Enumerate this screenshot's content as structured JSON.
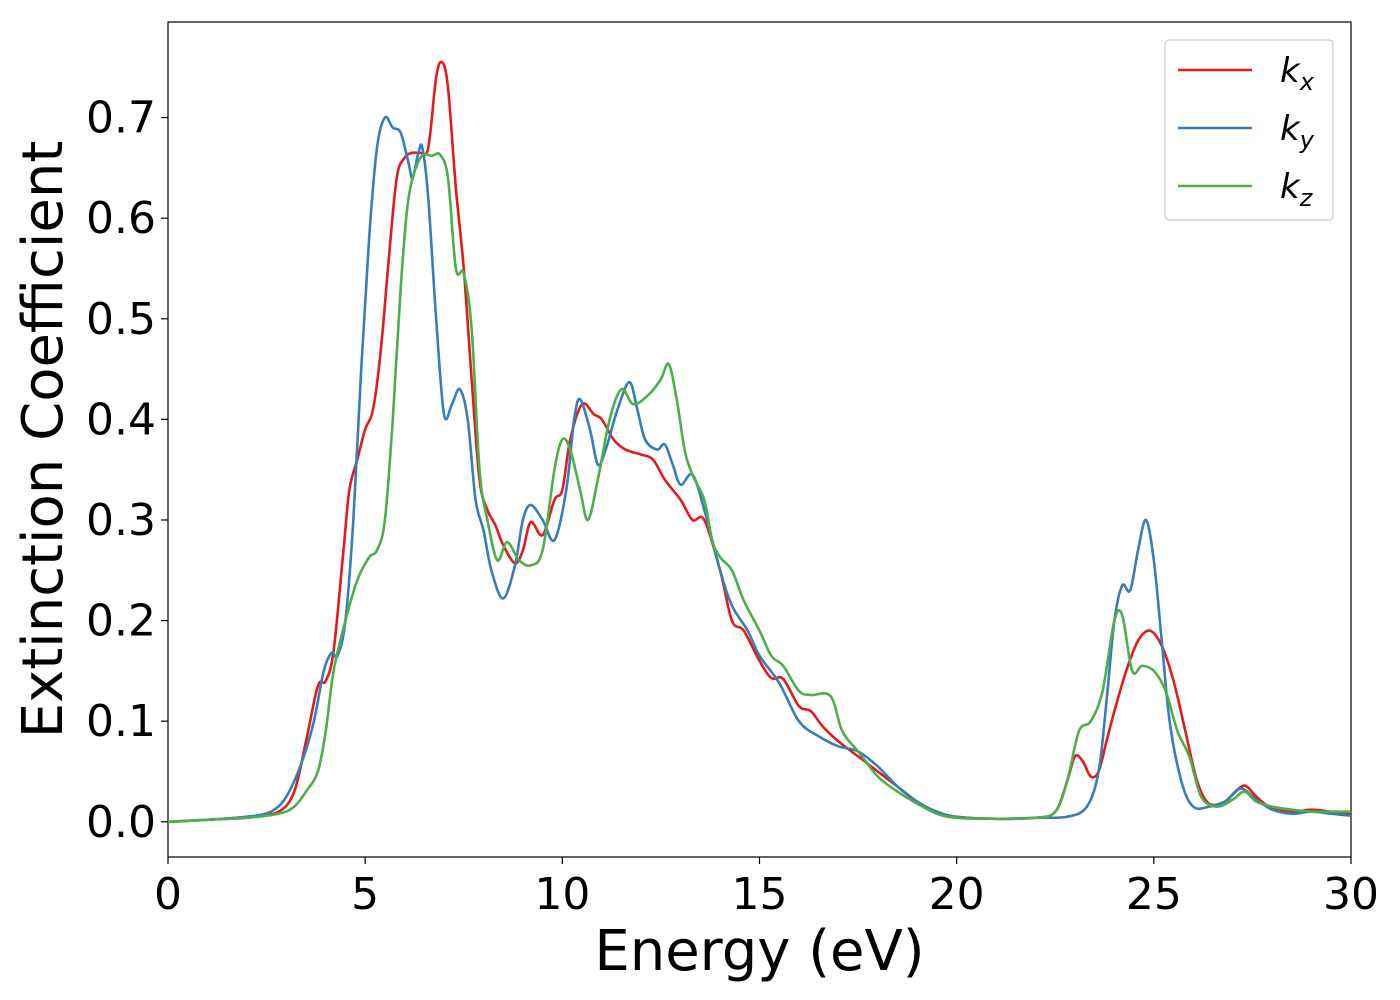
{
  "chart_data": {
    "type": "line",
    "title": "",
    "xlabel": "Energy (eV)",
    "ylabel": "Extinction Coefficient",
    "xlim": [
      0,
      30
    ],
    "ylim": [
      -0.035,
      0.795
    ],
    "xticks": [
      0,
      5,
      10,
      15,
      20,
      25,
      30
    ],
    "xtick_labels": [
      "0",
      "5",
      "10",
      "15",
      "20",
      "25",
      "30"
    ],
    "yticks": [
      0.0,
      0.1,
      0.2,
      0.3,
      0.4,
      0.5,
      0.6,
      0.7
    ],
    "ytick_labels": [
      "0.0",
      "0.1",
      "0.2",
      "0.3",
      "0.4",
      "0.5",
      "0.6",
      "0.7"
    ],
    "grid": false,
    "legend_position": "top-right",
    "series": [
      {
        "name": "k",
        "subscript": "x",
        "color": "#e41a1c",
        "points": [
          [
            0,
            0.0
          ],
          [
            1,
            0.002
          ],
          [
            2,
            0.005
          ],
          [
            2.8,
            0.01
          ],
          [
            3.2,
            0.03
          ],
          [
            3.5,
            0.08
          ],
          [
            3.8,
            0.135
          ],
          [
            4.0,
            0.14
          ],
          [
            4.2,
            0.17
          ],
          [
            4.45,
            0.27
          ],
          [
            4.6,
            0.33
          ],
          [
            4.8,
            0.36
          ],
          [
            5.0,
            0.39
          ],
          [
            5.2,
            0.41
          ],
          [
            5.4,
            0.47
          ],
          [
            5.6,
            0.56
          ],
          [
            5.8,
            0.64
          ],
          [
            6.0,
            0.66
          ],
          [
            6.2,
            0.665
          ],
          [
            6.4,
            0.665
          ],
          [
            6.6,
            0.67
          ],
          [
            6.8,
            0.74
          ],
          [
            6.95,
            0.755
          ],
          [
            7.1,
            0.73
          ],
          [
            7.3,
            0.63
          ],
          [
            7.5,
            0.55
          ],
          [
            7.7,
            0.44
          ],
          [
            7.9,
            0.34
          ],
          [
            8.1,
            0.31
          ],
          [
            8.3,
            0.295
          ],
          [
            8.5,
            0.275
          ],
          [
            8.8,
            0.257
          ],
          [
            9.0,
            0.27
          ],
          [
            9.2,
            0.298
          ],
          [
            9.5,
            0.285
          ],
          [
            9.8,
            0.32
          ],
          [
            10.0,
            0.33
          ],
          [
            10.2,
            0.38
          ],
          [
            10.5,
            0.415
          ],
          [
            10.8,
            0.405
          ],
          [
            11.0,
            0.4
          ],
          [
            11.3,
            0.38
          ],
          [
            11.6,
            0.37
          ],
          [
            12.0,
            0.365
          ],
          [
            12.3,
            0.36
          ],
          [
            12.6,
            0.34
          ],
          [
            13.0,
            0.32
          ],
          [
            13.3,
            0.3
          ],
          [
            13.6,
            0.3
          ],
          [
            14.0,
            0.25
          ],
          [
            14.3,
            0.2
          ],
          [
            14.6,
            0.19
          ],
          [
            15.0,
            0.16
          ],
          [
            15.3,
            0.143
          ],
          [
            15.6,
            0.142
          ],
          [
            16.0,
            0.115
          ],
          [
            16.3,
            0.11
          ],
          [
            16.6,
            0.095
          ],
          [
            17.0,
            0.08
          ],
          [
            17.5,
            0.065
          ],
          [
            18.0,
            0.05
          ],
          [
            18.5,
            0.035
          ],
          [
            19.0,
            0.02
          ],
          [
            19.5,
            0.01
          ],
          [
            20.0,
            0.005
          ],
          [
            21.0,
            0.003
          ],
          [
            22.0,
            0.004
          ],
          [
            22.5,
            0.01
          ],
          [
            22.8,
            0.04
          ],
          [
            23.0,
            0.065
          ],
          [
            23.2,
            0.06
          ],
          [
            23.4,
            0.045
          ],
          [
            23.6,
            0.05
          ],
          [
            23.8,
            0.08
          ],
          [
            24.0,
            0.11
          ],
          [
            24.3,
            0.15
          ],
          [
            24.6,
            0.18
          ],
          [
            24.9,
            0.19
          ],
          [
            25.2,
            0.175
          ],
          [
            25.5,
            0.14
          ],
          [
            25.8,
            0.09
          ],
          [
            26.1,
            0.04
          ],
          [
            26.4,
            0.018
          ],
          [
            26.8,
            0.02
          ],
          [
            27.0,
            0.027
          ],
          [
            27.3,
            0.036
          ],
          [
            27.6,
            0.025
          ],
          [
            28.0,
            0.013
          ],
          [
            28.5,
            0.01
          ],
          [
            29.0,
            0.012
          ],
          [
            29.5,
            0.01
          ],
          [
            30.0,
            0.008
          ]
        ]
      },
      {
        "name": "k",
        "subscript": "y",
        "color": "#377eb8",
        "points": [
          [
            0,
            0.0
          ],
          [
            1,
            0.002
          ],
          [
            2,
            0.005
          ],
          [
            2.6,
            0.01
          ],
          [
            3.0,
            0.025
          ],
          [
            3.4,
            0.06
          ],
          [
            3.7,
            0.1
          ],
          [
            3.95,
            0.15
          ],
          [
            4.15,
            0.168
          ],
          [
            4.3,
            0.165
          ],
          [
            4.5,
            0.2
          ],
          [
            4.7,
            0.3
          ],
          [
            4.9,
            0.45
          ],
          [
            5.1,
            0.58
          ],
          [
            5.3,
            0.67
          ],
          [
            5.5,
            0.7
          ],
          [
            5.7,
            0.69
          ],
          [
            5.9,
            0.685
          ],
          [
            6.1,
            0.655
          ],
          [
            6.2,
            0.64
          ],
          [
            6.35,
            0.665
          ],
          [
            6.45,
            0.67
          ],
          [
            6.6,
            0.62
          ],
          [
            6.8,
            0.5
          ],
          [
            7.0,
            0.405
          ],
          [
            7.2,
            0.415
          ],
          [
            7.4,
            0.43
          ],
          [
            7.6,
            0.4
          ],
          [
            7.8,
            0.32
          ],
          [
            8.0,
            0.29
          ],
          [
            8.2,
            0.25
          ],
          [
            8.5,
            0.222
          ],
          [
            8.8,
            0.255
          ],
          [
            9.0,
            0.3
          ],
          [
            9.2,
            0.315
          ],
          [
            9.5,
            0.3
          ],
          [
            9.8,
            0.28
          ],
          [
            10.1,
            0.33
          ],
          [
            10.3,
            0.4
          ],
          [
            10.45,
            0.42
          ],
          [
            10.7,
            0.39
          ],
          [
            10.9,
            0.355
          ],
          [
            11.1,
            0.37
          ],
          [
            11.4,
            0.41
          ],
          [
            11.7,
            0.437
          ],
          [
            11.9,
            0.41
          ],
          [
            12.1,
            0.38
          ],
          [
            12.4,
            0.37
          ],
          [
            12.6,
            0.375
          ],
          [
            12.8,
            0.355
          ],
          [
            13.0,
            0.335
          ],
          [
            13.3,
            0.345
          ],
          [
            13.6,
            0.31
          ],
          [
            14.0,
            0.25
          ],
          [
            14.3,
            0.215
          ],
          [
            14.7,
            0.19
          ],
          [
            15.0,
            0.165
          ],
          [
            15.5,
            0.138
          ],
          [
            16.0,
            0.1
          ],
          [
            16.5,
            0.085
          ],
          [
            17.0,
            0.075
          ],
          [
            17.5,
            0.07
          ],
          [
            18.0,
            0.055
          ],
          [
            18.5,
            0.035
          ],
          [
            19.0,
            0.02
          ],
          [
            19.5,
            0.01
          ],
          [
            20.0,
            0.005
          ],
          [
            21.0,
            0.003
          ],
          [
            22.0,
            0.004
          ],
          [
            22.8,
            0.005
          ],
          [
            23.3,
            0.015
          ],
          [
            23.6,
            0.05
          ],
          [
            23.8,
            0.12
          ],
          [
            24.0,
            0.2
          ],
          [
            24.2,
            0.235
          ],
          [
            24.4,
            0.23
          ],
          [
            24.6,
            0.27
          ],
          [
            24.8,
            0.3
          ],
          [
            25.0,
            0.26
          ],
          [
            25.2,
            0.18
          ],
          [
            25.4,
            0.1
          ],
          [
            25.7,
            0.04
          ],
          [
            26.0,
            0.015
          ],
          [
            26.4,
            0.015
          ],
          [
            26.8,
            0.02
          ],
          [
            27.2,
            0.033
          ],
          [
            27.6,
            0.022
          ],
          [
            28.0,
            0.012
          ],
          [
            28.5,
            0.008
          ],
          [
            29.0,
            0.01
          ],
          [
            29.5,
            0.008
          ],
          [
            30.0,
            0.006
          ]
        ]
      },
      {
        "name": "k",
        "subscript": "z",
        "color": "#4daf4a",
        "points": [
          [
            0,
            0.0
          ],
          [
            1,
            0.002
          ],
          [
            2,
            0.004
          ],
          [
            2.8,
            0.008
          ],
          [
            3.2,
            0.015
          ],
          [
            3.5,
            0.03
          ],
          [
            3.8,
            0.05
          ],
          [
            4.0,
            0.09
          ],
          [
            4.2,
            0.15
          ],
          [
            4.5,
            0.2
          ],
          [
            4.8,
            0.24
          ],
          [
            5.1,
            0.263
          ],
          [
            5.3,
            0.27
          ],
          [
            5.5,
            0.3
          ],
          [
            5.7,
            0.4
          ],
          [
            5.9,
            0.53
          ],
          [
            6.1,
            0.62
          ],
          [
            6.4,
            0.66
          ],
          [
            6.7,
            0.662
          ],
          [
            6.9,
            0.663
          ],
          [
            7.1,
            0.64
          ],
          [
            7.3,
            0.55
          ],
          [
            7.5,
            0.545
          ],
          [
            7.7,
            0.49
          ],
          [
            7.9,
            0.35
          ],
          [
            8.1,
            0.3
          ],
          [
            8.35,
            0.26
          ],
          [
            8.6,
            0.278
          ],
          [
            8.9,
            0.26
          ],
          [
            9.2,
            0.255
          ],
          [
            9.5,
            0.27
          ],
          [
            9.8,
            0.35
          ],
          [
            10.0,
            0.38
          ],
          [
            10.2,
            0.37
          ],
          [
            10.45,
            0.33
          ],
          [
            10.65,
            0.3
          ],
          [
            10.9,
            0.34
          ],
          [
            11.2,
            0.4
          ],
          [
            11.5,
            0.43
          ],
          [
            11.8,
            0.415
          ],
          [
            12.2,
            0.425
          ],
          [
            12.5,
            0.44
          ],
          [
            12.7,
            0.455
          ],
          [
            12.9,
            0.42
          ],
          [
            13.1,
            0.37
          ],
          [
            13.3,
            0.345
          ],
          [
            13.6,
            0.32
          ],
          [
            13.8,
            0.28
          ],
          [
            14.0,
            0.263
          ],
          [
            14.3,
            0.25
          ],
          [
            14.6,
            0.22
          ],
          [
            15.0,
            0.19
          ],
          [
            15.3,
            0.165
          ],
          [
            15.6,
            0.155
          ],
          [
            16.0,
            0.13
          ],
          [
            16.3,
            0.126
          ],
          [
            16.8,
            0.125
          ],
          [
            17.1,
            0.09
          ],
          [
            17.5,
            0.07
          ],
          [
            18.0,
            0.045
          ],
          [
            18.5,
            0.03
          ],
          [
            19.0,
            0.018
          ],
          [
            19.5,
            0.008
          ],
          [
            20.0,
            0.004
          ],
          [
            21.0,
            0.003
          ],
          [
            22.0,
            0.004
          ],
          [
            22.5,
            0.01
          ],
          [
            22.8,
            0.04
          ],
          [
            23.1,
            0.09
          ],
          [
            23.4,
            0.1
          ],
          [
            23.7,
            0.13
          ],
          [
            24.0,
            0.2
          ],
          [
            24.2,
            0.205
          ],
          [
            24.45,
            0.15
          ],
          [
            24.7,
            0.155
          ],
          [
            25.0,
            0.15
          ],
          [
            25.3,
            0.13
          ],
          [
            25.6,
            0.09
          ],
          [
            25.9,
            0.065
          ],
          [
            26.2,
            0.025
          ],
          [
            26.6,
            0.015
          ],
          [
            27.0,
            0.022
          ],
          [
            27.3,
            0.03
          ],
          [
            27.6,
            0.02
          ],
          [
            28.0,
            0.015
          ],
          [
            28.5,
            0.012
          ],
          [
            29.0,
            0.01
          ],
          [
            29.5,
            0.01
          ],
          [
            30.0,
            0.01
          ]
        ]
      }
    ]
  }
}
